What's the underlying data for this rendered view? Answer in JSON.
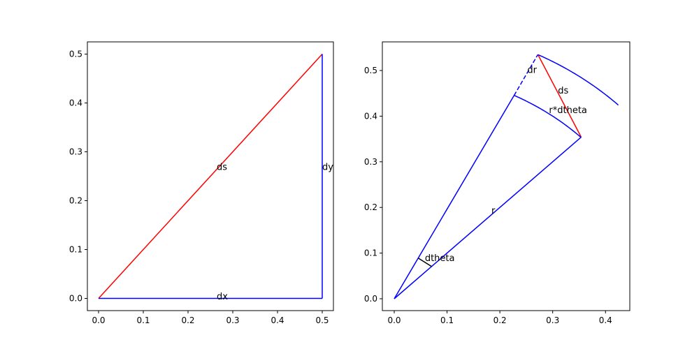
{
  "chart_data": [
    {
      "type": "line",
      "xlim": [
        -0.025,
        0.525
      ],
      "ylim": [
        -0.025,
        0.525
      ],
      "xticks": [
        {
          "value": 0,
          "label": "0.0"
        },
        0.1,
        0.2,
        0.3,
        0.4,
        0.5
      ],
      "yticks": [
        {
          "value": 0,
          "label": "0.0"
        },
        0.1,
        0.2,
        0.3,
        0.4,
        0.5
      ],
      "lines": [
        {
          "x": [
            0,
            0.5
          ],
          "y": [
            0,
            0.5
          ],
          "color": "#ff0000",
          "style": "solid"
        },
        {
          "x": [
            0,
            0.5
          ],
          "y": [
            0,
            0
          ],
          "color": "#0000ff",
          "style": "solid"
        },
        {
          "x": [
            0.5,
            0.5
          ],
          "y": [
            0,
            0.5
          ],
          "color": "#0000ff",
          "style": "solid"
        }
      ],
      "annotations": [
        {
          "text": "ds",
          "x": 0.264,
          "y": 0.27
        },
        {
          "text": "dx",
          "x": 0.264,
          "y": 0.005
        },
        {
          "text": "dy",
          "x": 0.5,
          "y": 0.27
        }
      ]
    },
    {
      "type": "line",
      "xlim": [
        -0.0225,
        0.446
      ],
      "ylim": [
        -0.026,
        0.5627
      ],
      "xticks": [
        {
          "value": 0,
          "label": "0.0"
        },
        0.1,
        0.2,
        0.3,
        0.4
      ],
      "yticks": [
        {
          "value": 0,
          "label": "0.0"
        },
        0.1,
        0.2,
        0.3,
        0.4,
        0.5
      ],
      "lines": [
        {
          "x": [
            0,
            0.354
          ],
          "y": [
            0,
            0.354
          ],
          "color": "#0000ff",
          "style": "solid"
        },
        {
          "x": [
            0,
            0.227
          ],
          "y": [
            0,
            0.4455
          ],
          "color": "#0000ff",
          "style": "solid"
        },
        {
          "x": [
            0.227,
            0.272
          ],
          "y": [
            0.4455,
            0.535
          ],
          "color": "#0000ff",
          "style": "dashed"
        },
        {
          "x": [
            0.354,
            0.272
          ],
          "y": [
            0.354,
            0.535
          ],
          "color": "#ff0000",
          "style": "solid"
        },
        {
          "x": [
            0.0707,
            0.0454
          ],
          "y": [
            0.0707,
            0.0891
          ],
          "color": "#000000",
          "style": "solid"
        }
      ],
      "arcs": [
        {
          "radius": 0.5,
          "theta": [
            45,
            63
          ],
          "color": "#0000ff"
        },
        {
          "radius": 0.6,
          "theta": [
            45,
            63
          ],
          "color": "#0000ff"
        }
      ],
      "annotations": [
        {
          "text": "dr",
          "x": 0.252,
          "y": 0.502
        },
        {
          "text": "ds",
          "x": 0.31,
          "y": 0.457
        },
        {
          "text": "r*dtheta",
          "x": 0.293,
          "y": 0.414
        },
        {
          "text": "r",
          "x": 0.184,
          "y": 0.194
        },
        {
          "text": "dtheta",
          "x": 0.058,
          "y": 0.09
        }
      ]
    }
  ]
}
